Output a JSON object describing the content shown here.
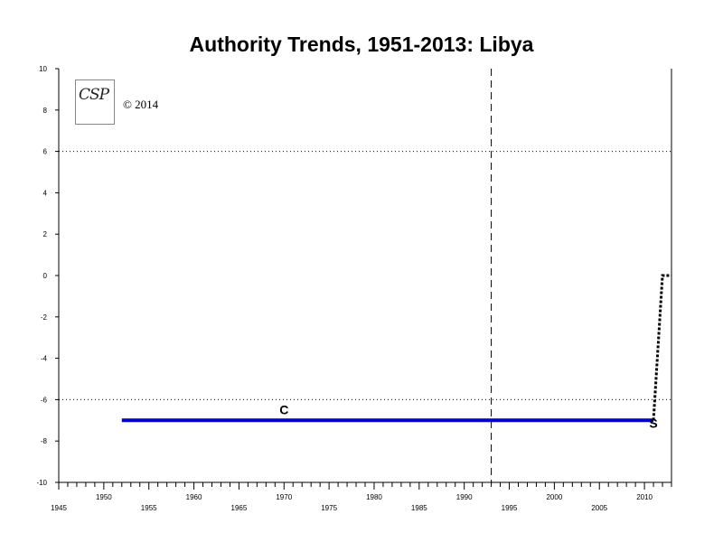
{
  "chart_data": {
    "type": "line",
    "title": "Authority Trends, 1951-2013: Libya",
    "xlabel": "",
    "ylabel": "",
    "xlim": [
      1945,
      2013
    ],
    "ylim": [
      -10,
      10
    ],
    "x_ticks_major": [
      1945,
      1955,
      1965,
      1975,
      1985,
      1995,
      2005
    ],
    "x_ticks_minor_labeled": [
      1950,
      1960,
      1970,
      1980,
      1990,
      2000,
      2010
    ],
    "y_ticks": [
      10,
      8,
      6,
      4,
      2,
      0,
      -2,
      -4,
      -6,
      -8,
      -10
    ],
    "reference_lines": {
      "horizontal_dotted": [
        6,
        -6
      ],
      "vertical_dashed": [
        1993
      ]
    },
    "series": [
      {
        "style": "solid",
        "color": "#0000cc",
        "x": [
          1952,
          2011
        ],
        "y": [
          -7,
          -7
        ]
      },
      {
        "style": "dotted",
        "color": "#000000",
        "x": [
          2011,
          2012,
          2013
        ],
        "y": [
          -7,
          0,
          0
        ]
      }
    ],
    "markers": [
      {
        "label": "C",
        "x": 1970,
        "y": -7
      },
      {
        "label": "S",
        "x": 2011,
        "y": -7
      }
    ]
  },
  "logo": {
    "text": "CSP"
  },
  "copyright": "© 2014"
}
